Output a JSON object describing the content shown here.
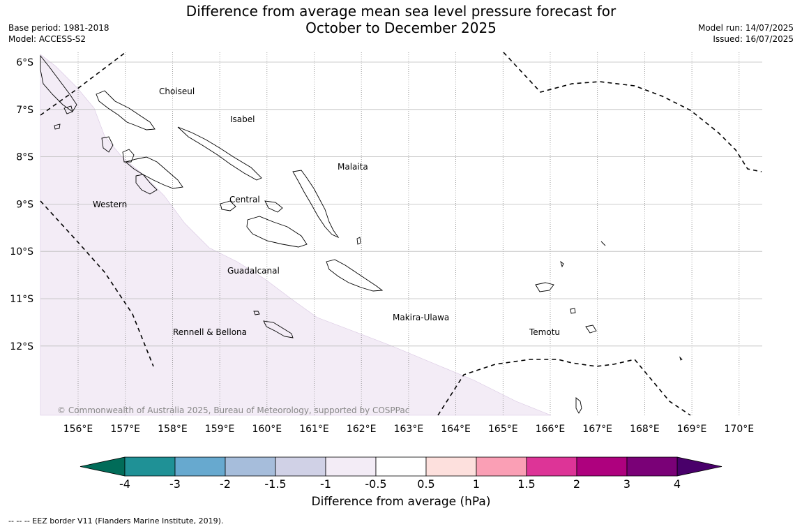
{
  "header": {
    "title_line1": "Difference from average mean sea level pressure forecast for",
    "title_line2": "October to December 2025",
    "base_period": "Base period: 1981-2018",
    "model": "Model: ACCESS-S2",
    "model_run": "Model run: 14/07/2025",
    "issued": "Issued: 16/07/2025"
  },
  "map": {
    "lon_ticks": [
      "156°E",
      "157°E",
      "158°E",
      "159°E",
      "160°E",
      "161°E",
      "162°E",
      "163°E",
      "164°E",
      "165°E",
      "166°E",
      "167°E",
      "168°E",
      "169°E",
      "170°E"
    ],
    "lat_ticks": [
      "6°S",
      "7°S",
      "8°S",
      "9°S",
      "10°S",
      "11°S",
      "12°S"
    ],
    "provinces": [
      "Choiseul",
      "Isabel",
      "Malaita",
      "Western",
      "Central",
      "Guadalcanal",
      "Makira-Ulawa",
      "Rennell & Bellona",
      "Temotu"
    ],
    "shading": {
      "category": "-1 to -0.5",
      "color": "#f3ecf6"
    },
    "copyright": "© Commonwealth of Australia 2025, Bureau of Meteorology, supported by COSPPac"
  },
  "colorbar": {
    "levels": [
      "-4",
      "-3",
      "-2",
      "-1.5",
      "-1",
      "-0.5",
      "0.5",
      "1",
      "1.5",
      "2",
      "3",
      "4"
    ],
    "colors": [
      "#1f9196",
      "#67a9cf",
      "#a6bddb",
      "#d0d1e6",
      "#f3ecf6",
      "#ffffff",
      "#fde0dd",
      "#fa9fb5",
      "#dd3497",
      "#ae017e",
      "#7a0177"
    ],
    "extend_min_color": "#016c59",
    "extend_max_color": "#49006a",
    "label": "Difference from average (hPa)"
  },
  "footnote": "--  --  -- EEZ border V11 (Flanders Marine Institute, 2019)."
}
